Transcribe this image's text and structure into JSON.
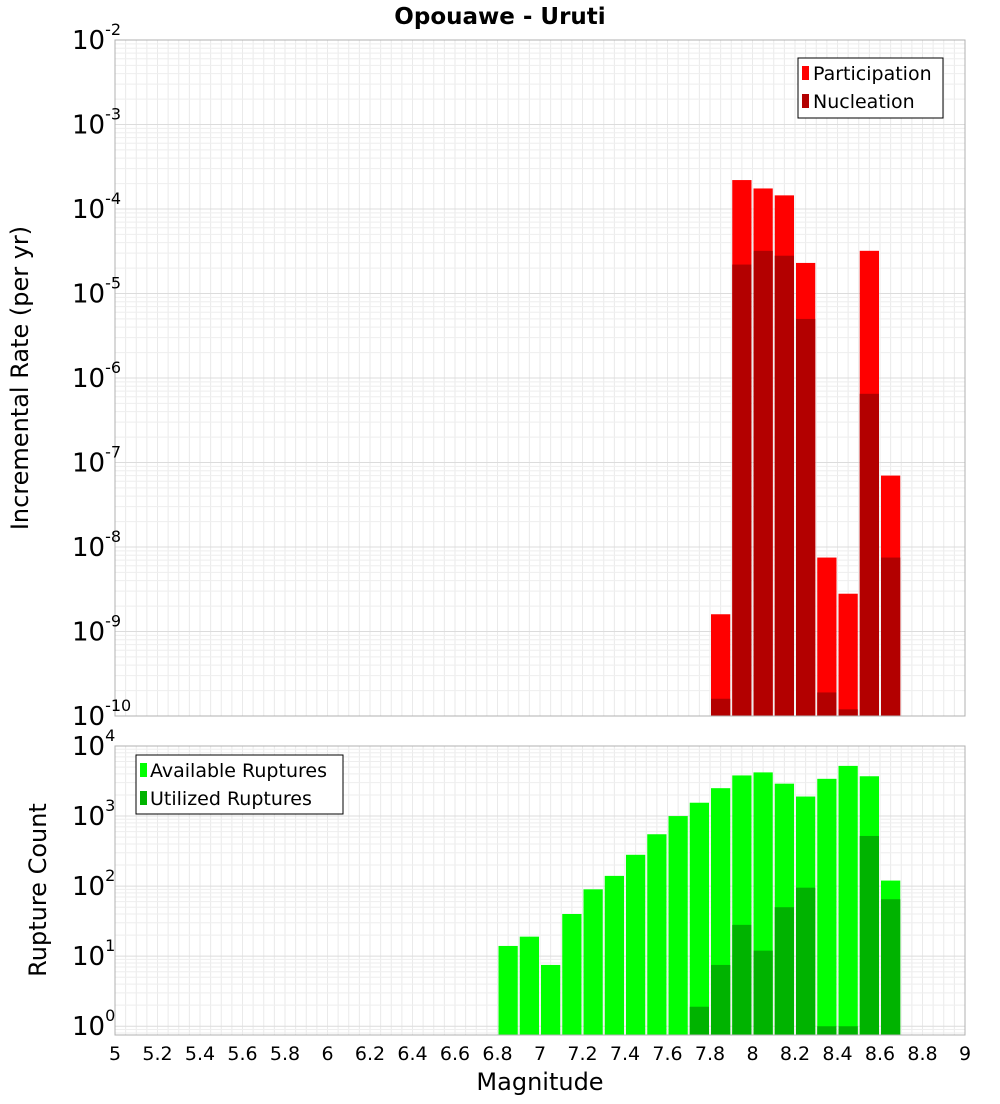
{
  "chart_data": [
    {
      "type": "bar",
      "title": "Opouawe - Uruti",
      "xlabel": "",
      "ylabel": "Incremental Rate (per yr)",
      "yscale": "log",
      "ylim": [
        1e-10,
        0.01
      ],
      "xlim": [
        5,
        9
      ],
      "grid": true,
      "legend_position": "top-right",
      "bar_width": 0.1,
      "y_tick_labels": [
        {
          "base": "10",
          "exp": "-10"
        },
        {
          "base": "10",
          "exp": "-9"
        },
        {
          "base": "10",
          "exp": "-8"
        },
        {
          "base": "10",
          "exp": "-7"
        },
        {
          "base": "10",
          "exp": "-6"
        },
        {
          "base": "10",
          "exp": "-5"
        },
        {
          "base": "10",
          "exp": "-4"
        },
        {
          "base": "10",
          "exp": "-3"
        },
        {
          "base": "10",
          "exp": "-2"
        }
      ],
      "series": [
        {
          "name": "Participation",
          "color": "#ff0000",
          "x": [
            7.85,
            7.95,
            8.05,
            8.15,
            8.25,
            8.35,
            8.45,
            8.55,
            8.65
          ],
          "values": [
            1.6e-09,
            0.00022,
            0.000175,
            0.000145,
            2.3e-05,
            7.5e-09,
            2.8e-09,
            3.2e-05,
            7e-08
          ]
        },
        {
          "name": "Nucleation",
          "color": "#b30000",
          "x": [
            7.85,
            7.95,
            8.05,
            8.15,
            8.25,
            8.35,
            8.45,
            8.55,
            8.65
          ],
          "values": [
            1.6e-10,
            2.2e-05,
            3.2e-05,
            2.8e-05,
            5e-06,
            1.9e-10,
            1.2e-10,
            6.5e-07,
            7.5e-09
          ]
        }
      ]
    },
    {
      "type": "bar",
      "title": "",
      "xlabel": "Magnitude",
      "ylabel": "Rupture Count",
      "yscale": "log",
      "ylim": [
        0.75,
        10000
      ],
      "xlim": [
        5,
        9
      ],
      "grid": true,
      "legend_position": "top-left",
      "bar_width": 0.1,
      "x_ticks": [
        "5",
        "5.2",
        "5.4",
        "5.6",
        "5.8",
        "6",
        "6.2",
        "6.4",
        "6.6",
        "6.8",
        "7",
        "7.2",
        "7.4",
        "7.6",
        "7.8",
        "8",
        "8.2",
        "8.4",
        "8.6",
        "8.8",
        "9"
      ],
      "y_tick_labels": [
        {
          "base": "10",
          "exp": "0"
        },
        {
          "base": "10",
          "exp": "1"
        },
        {
          "base": "10",
          "exp": "2"
        },
        {
          "base": "10",
          "exp": "3"
        },
        {
          "base": "10",
          "exp": "4"
        }
      ],
      "series": [
        {
          "name": "Available Ruptures",
          "color": "#00ff00",
          "x": [
            6.85,
            6.95,
            7.05,
            7.15,
            7.25,
            7.35,
            7.45,
            7.55,
            7.65,
            7.75,
            7.85,
            7.95,
            8.05,
            8.15,
            8.25,
            8.35,
            8.45,
            8.55,
            8.65
          ],
          "values": [
            14,
            19,
            7.5,
            40,
            90,
            140,
            280,
            550,
            1000,
            1550,
            2500,
            3800,
            4200,
            2900,
            1900,
            3400,
            5200,
            3700,
            120
          ]
        },
        {
          "name": "Utilized Ruptures",
          "color": "#00b300",
          "x": [
            7.75,
            7.85,
            7.95,
            8.05,
            8.15,
            8.25,
            8.35,
            8.45,
            8.55,
            8.65
          ],
          "values": [
            1.9,
            7.5,
            28,
            12,
            50,
            95,
            1,
            1,
            520,
            65
          ]
        }
      ]
    }
  ]
}
